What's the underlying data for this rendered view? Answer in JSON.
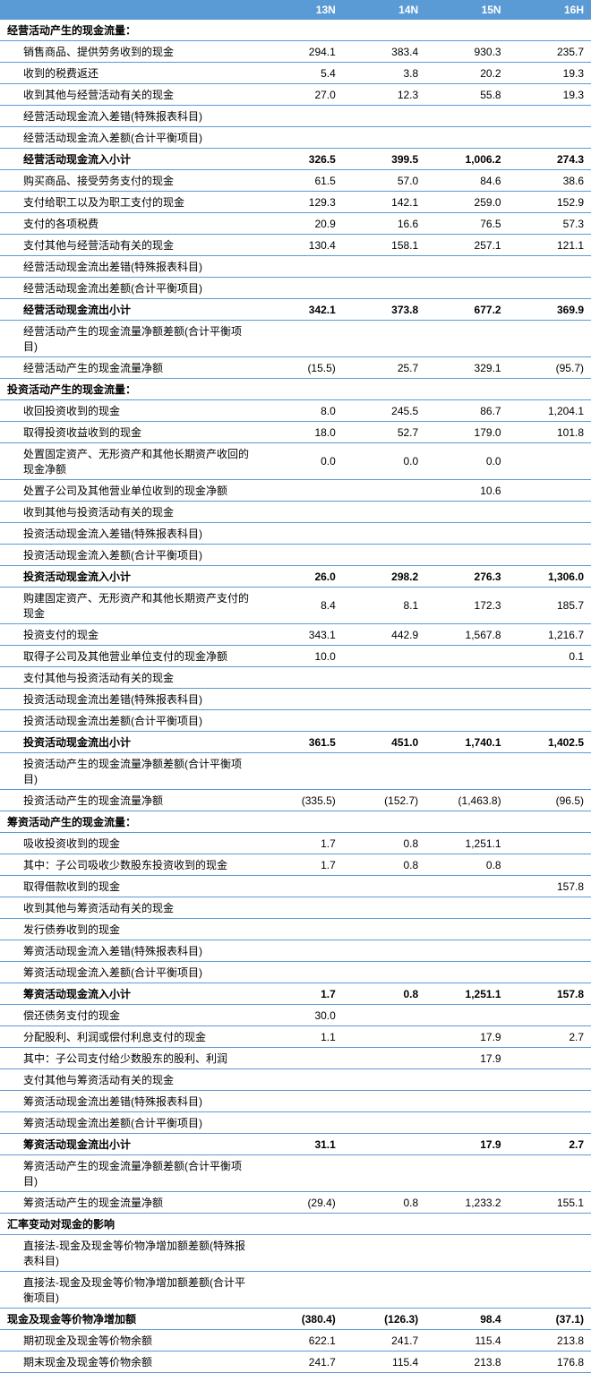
{
  "colors": {
    "header_bg": "#5b9bd5",
    "header_text": "#ffffff",
    "border": "#5b9bd5",
    "text": "#000000",
    "negative": "#ff0000",
    "background": "#ffffff"
  },
  "columns": [
    "13N",
    "14N",
    "15N",
    "16H"
  ],
  "rows": [
    {
      "label": "经营活动产生的现金流量：",
      "cls": "section",
      "vals": [
        "",
        "",
        "",
        ""
      ]
    },
    {
      "label": "销售商品、提供劳务收到的现金",
      "cls": "indent1",
      "vals": [
        "294.1",
        "383.4",
        "930.3",
        "235.7"
      ]
    },
    {
      "label": "收到的税费返还",
      "cls": "indent1",
      "vals": [
        "5.4",
        "3.8",
        "20.2",
        "19.3"
      ]
    },
    {
      "label": "收到其他与经营活动有关的现金",
      "cls": "indent1",
      "vals": [
        "27.0",
        "12.3",
        "55.8",
        "19.3"
      ]
    },
    {
      "label": "经营活动现金流入差错(特殊报表科目)",
      "cls": "indent1",
      "vals": [
        "",
        "",
        "",
        ""
      ]
    },
    {
      "label": "经营活动现金流入差额(合计平衡项目)",
      "cls": "indent1",
      "vals": [
        "",
        "",
        "",
        ""
      ]
    },
    {
      "label": "经营活动现金流入小计",
      "cls": "indent1 subtotal",
      "vals": [
        "326.5",
        "399.5",
        "1,006.2",
        "274.3"
      ]
    },
    {
      "label": "购买商品、接受劳务支付的现金",
      "cls": "indent1",
      "vals": [
        "61.5",
        "57.0",
        "84.6",
        "38.6"
      ]
    },
    {
      "label": "支付给职工以及为职工支付的现金",
      "cls": "indent1",
      "vals": [
        "129.3",
        "142.1",
        "259.0",
        "152.9"
      ]
    },
    {
      "label": "支付的各项税费",
      "cls": "indent1",
      "vals": [
        "20.9",
        "16.6",
        "76.5",
        "57.3"
      ]
    },
    {
      "label": "支付其他与经营活动有关的现金",
      "cls": "indent1",
      "vals": [
        "130.4",
        "158.1",
        "257.1",
        "121.1"
      ]
    },
    {
      "label": "经营活动现金流出差错(特殊报表科目)",
      "cls": "indent1",
      "vals": [
        "",
        "",
        "",
        ""
      ]
    },
    {
      "label": "经营活动现金流出差额(合计平衡项目)",
      "cls": "indent1",
      "vals": [
        "",
        "",
        "",
        ""
      ]
    },
    {
      "label": "经营活动现金流出小计",
      "cls": "indent1 subtotal",
      "vals": [
        "342.1",
        "373.8",
        "677.2",
        "369.9"
      ]
    },
    {
      "label": "经营活动产生的现金流量净额差额(合计平衡项目)",
      "cls": "indent1",
      "vals": [
        "",
        "",
        "",
        ""
      ]
    },
    {
      "label": "经营活动产生的现金流量净额",
      "cls": "indent1",
      "vals": [
        "(15.5)",
        "25.7",
        "329.1",
        "(95.7)"
      ],
      "neg": [
        true,
        false,
        false,
        true
      ]
    },
    {
      "label": "投资活动产生的现金流量：",
      "cls": "section",
      "vals": [
        "",
        "",
        "",
        ""
      ]
    },
    {
      "label": "收回投资收到的现金",
      "cls": "indent1",
      "vals": [
        "8.0",
        "245.5",
        "86.7",
        "1,204.1"
      ]
    },
    {
      "label": "取得投资收益收到的现金",
      "cls": "indent1",
      "vals": [
        "18.0",
        "52.7",
        "179.0",
        "101.8"
      ]
    },
    {
      "label": "处置固定资产、无形资产和其他长期资产收回的现金净额",
      "cls": "indent1",
      "vals": [
        "0.0",
        "0.0",
        "0.0",
        ""
      ]
    },
    {
      "label": "处置子公司及其他营业单位收到的现金净额",
      "cls": "indent1",
      "vals": [
        "",
        "",
        "10.6",
        ""
      ]
    },
    {
      "label": "收到其他与投资活动有关的现金",
      "cls": "indent1",
      "vals": [
        "",
        "",
        "",
        ""
      ]
    },
    {
      "label": "投资活动现金流入差错(特殊报表科目)",
      "cls": "indent1",
      "vals": [
        "",
        "",
        "",
        ""
      ]
    },
    {
      "label": "投资活动现金流入差额(合计平衡项目)",
      "cls": "indent1",
      "vals": [
        "",
        "",
        "",
        ""
      ]
    },
    {
      "label": "投资活动现金流入小计",
      "cls": "indent1 subtotal",
      "vals": [
        "26.0",
        "298.2",
        "276.3",
        "1,306.0"
      ]
    },
    {
      "label": "购建固定资产、无形资产和其他长期资产支付的现金",
      "cls": "indent1",
      "vals": [
        "8.4",
        "8.1",
        "172.3",
        "185.7"
      ]
    },
    {
      "label": "投资支付的现金",
      "cls": "indent1",
      "vals": [
        "343.1",
        "442.9",
        "1,567.8",
        "1,216.7"
      ]
    },
    {
      "label": "取得子公司及其他营业单位支付的现金净额",
      "cls": "indent1",
      "vals": [
        "10.0",
        "",
        "",
        "0.1"
      ]
    },
    {
      "label": "支付其他与投资活动有关的现金",
      "cls": "indent1",
      "vals": [
        "",
        "",
        "",
        ""
      ]
    },
    {
      "label": "投资活动现金流出差错(特殊报表科目)",
      "cls": "indent1",
      "vals": [
        "",
        "",
        "",
        ""
      ]
    },
    {
      "label": "投资活动现金流出差额(合计平衡项目)",
      "cls": "indent1",
      "vals": [
        "",
        "",
        "",
        ""
      ]
    },
    {
      "label": "投资活动现金流出小计",
      "cls": "indent1 subtotal",
      "vals": [
        "361.5",
        "451.0",
        "1,740.1",
        "1,402.5"
      ]
    },
    {
      "label": "投资活动产生的现金流量净额差额(合计平衡项目)",
      "cls": "indent1",
      "vals": [
        "",
        "",
        "",
        ""
      ]
    },
    {
      "label": "投资活动产生的现金流量净额",
      "cls": "indent1",
      "vals": [
        "(335.5)",
        "(152.7)",
        "(1,463.8)",
        "(96.5)"
      ],
      "neg": [
        true,
        true,
        true,
        true
      ]
    },
    {
      "label": "筹资活动产生的现金流量：",
      "cls": "section",
      "vals": [
        "",
        "",
        "",
        ""
      ]
    },
    {
      "label": "吸收投资收到的现金",
      "cls": "indent1",
      "vals": [
        "1.7",
        "0.8",
        "1,251.1",
        ""
      ]
    },
    {
      "label": "其中：子公司吸收少数股东投资收到的现金",
      "cls": "indent1",
      "vals": [
        "1.7",
        "0.8",
        "0.8",
        ""
      ]
    },
    {
      "label": "取得借款收到的现金",
      "cls": "indent1",
      "vals": [
        "",
        "",
        "",
        "157.8"
      ]
    },
    {
      "label": "收到其他与筹资活动有关的现金",
      "cls": "indent1",
      "vals": [
        "",
        "",
        "",
        ""
      ]
    },
    {
      "label": "发行债券收到的现金",
      "cls": "indent1",
      "vals": [
        "",
        "",
        "",
        ""
      ]
    },
    {
      "label": "筹资活动现金流入差错(特殊报表科目)",
      "cls": "indent1",
      "vals": [
        "",
        "",
        "",
        ""
      ]
    },
    {
      "label": "筹资活动现金流入差额(合计平衡项目)",
      "cls": "indent1",
      "vals": [
        "",
        "",
        "",
        ""
      ]
    },
    {
      "label": "筹资活动现金流入小计",
      "cls": "indent1 subtotal",
      "vals": [
        "1.7",
        "0.8",
        "1,251.1",
        "157.8"
      ]
    },
    {
      "label": "偿还债务支付的现金",
      "cls": "indent1",
      "vals": [
        "30.0",
        "",
        "",
        ""
      ]
    },
    {
      "label": "分配股利、利润或偿付利息支付的现金",
      "cls": "indent1",
      "vals": [
        "1.1",
        "",
        "17.9",
        "2.7"
      ]
    },
    {
      "label": "其中：子公司支付给少数股东的股利、利润",
      "cls": "indent1",
      "vals": [
        "",
        "",
        "17.9",
        ""
      ]
    },
    {
      "label": "支付其他与筹资活动有关的现金",
      "cls": "indent1",
      "vals": [
        "",
        "",
        "",
        ""
      ]
    },
    {
      "label": "筹资活动现金流出差错(特殊报表科目)",
      "cls": "indent1",
      "vals": [
        "",
        "",
        "",
        ""
      ]
    },
    {
      "label": "筹资活动现金流出差额(合计平衡项目)",
      "cls": "indent1",
      "vals": [
        "",
        "",
        "",
        ""
      ]
    },
    {
      "label": "筹资活动现金流出小计",
      "cls": "indent1 subtotal",
      "vals": [
        "31.1",
        "",
        "17.9",
        "2.7"
      ]
    },
    {
      "label": "筹资活动产生的现金流量净额差额(合计平衡项目)",
      "cls": "indent1",
      "vals": [
        "",
        "",
        "",
        ""
      ]
    },
    {
      "label": "筹资活动产生的现金流量净额",
      "cls": "indent1",
      "vals": [
        "(29.4)",
        "0.8",
        "1,233.2",
        "155.1"
      ],
      "neg": [
        true,
        false,
        false,
        false
      ]
    },
    {
      "label": "汇率变动对现金的影响",
      "cls": "section",
      "vals": [
        "",
        "",
        "",
        ""
      ]
    },
    {
      "label": "直接法-现金及现金等价物净增加额差额(特殊报表科目)",
      "cls": "indent1",
      "vals": [
        "",
        "",
        "",
        ""
      ]
    },
    {
      "label": "直接法-现金及现金等价物净增加额差额(合计平衡项目)",
      "cls": "indent1",
      "vals": [
        "",
        "",
        "",
        ""
      ]
    },
    {
      "label": "现金及现金等价物净增加额",
      "cls": "section",
      "vals": [
        "(380.4)",
        "(126.3)",
        "98.4",
        "(37.1)"
      ],
      "neg": [
        true,
        true,
        false,
        true
      ]
    },
    {
      "label": "期初现金及现金等价物余额",
      "cls": "indent1",
      "vals": [
        "622.1",
        "241.7",
        "115.4",
        "213.8"
      ]
    },
    {
      "label": "期末现金及现金等价物余额",
      "cls": "indent1",
      "vals": [
        "241.7",
        "115.4",
        "213.8",
        "176.8"
      ]
    }
  ]
}
